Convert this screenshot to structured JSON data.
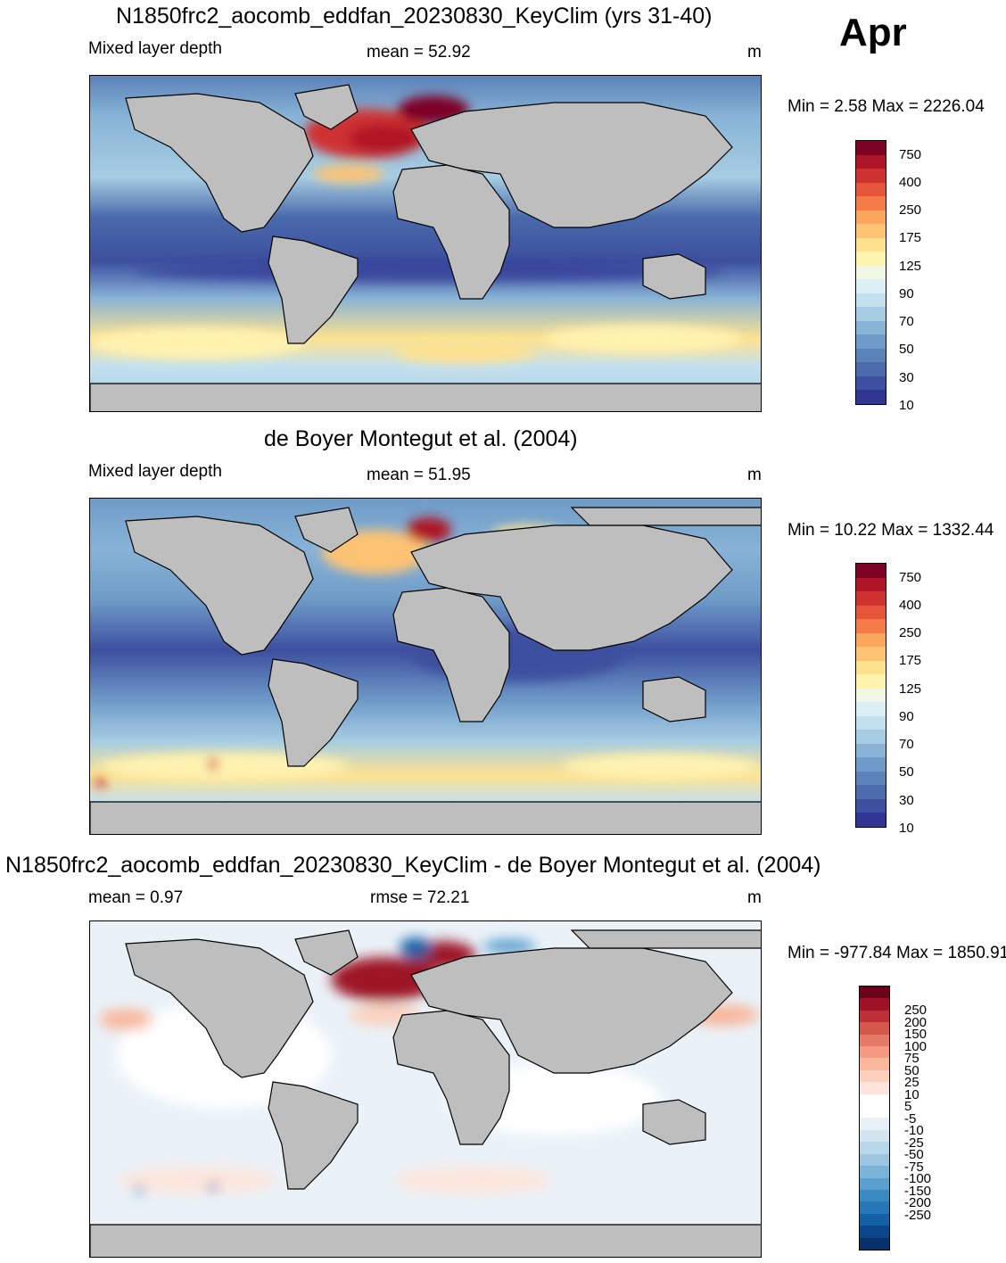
{
  "month": "Apr",
  "units": "m",
  "colors": {
    "land": "#bebebe",
    "coast": "#000000"
  },
  "panels": [
    {
      "id": "model",
      "title": "N1850frc2_aocomb_eddfan_20230830_KeyClim (yrs 31-40)",
      "variable": "Mixed layer depth",
      "stat": "mean =  52.92",
      "stat2": "",
      "minmax": "Min =   2.58 Max = 2226.04",
      "colorbar": {
        "colors": [
          "#313695",
          "#3d4f9f",
          "#4a6aab",
          "#5b82b9",
          "#6f9bc8",
          "#88b3d6",
          "#a6cde3",
          "#c3e0ee",
          "#ddeff6",
          "#f0f8e4",
          "#fff3b0",
          "#fee290",
          "#fdc373",
          "#fca55d",
          "#f57c48",
          "#e4553a",
          "#cf3230",
          "#af1527",
          "#7d0025"
        ],
        "labels": [
          "750",
          "400",
          "250",
          "175",
          "125",
          "90",
          "70",
          "50",
          "30",
          "10"
        ]
      }
    },
    {
      "id": "obs",
      "title": "de Boyer Montegut et al. (2004)",
      "variable": "Mixed layer depth",
      "stat": "mean =  51.95",
      "stat2": "",
      "minmax": "Min =  10.22 Max = 1332.44",
      "colorbar": {
        "colors": [
          "#313695",
          "#3d4f9f",
          "#4a6aab",
          "#5b82b9",
          "#6f9bc8",
          "#88b3d6",
          "#a6cde3",
          "#c3e0ee",
          "#ddeff6",
          "#f0f8e4",
          "#fff3b0",
          "#fee290",
          "#fdc373",
          "#fca55d",
          "#f57c48",
          "#e4553a",
          "#cf3230",
          "#af1527",
          "#7d0025"
        ],
        "labels": [
          "750",
          "400",
          "250",
          "175",
          "125",
          "90",
          "70",
          "50",
          "30",
          "10"
        ]
      }
    },
    {
      "id": "diff",
      "title": "N1850frc2_aocomb_eddfan_20230830_KeyClim - de Boyer Montegut et al. (2004)",
      "variable": "",
      "stat": "mean =   0.97",
      "stat2": "rmse =  72.21",
      "minmax": "Min = -977.84 Max = 1850.91",
      "colorbar": {
        "colors": [
          "#08306b",
          "#0b468a",
          "#1460a6",
          "#2777b8",
          "#3a8ac2",
          "#5a9fcf",
          "#7cb3d9",
          "#9cc6e2",
          "#b9d7ea",
          "#d3e5f1",
          "#e8f1f7",
          "#ffffff",
          "#ffffff",
          "#fde5dc",
          "#fcd0bd",
          "#f9b79e",
          "#f39a80",
          "#e67a64",
          "#d4574b",
          "#bd3038",
          "#9e1227",
          "#6c0019"
        ],
        "labels": [
          "250",
          "200",
          "150",
          "100",
          "75",
          "50",
          "25",
          "10",
          "5",
          "-5",
          "-10",
          "-25",
          "-50",
          "-75",
          "-100",
          "-150",
          "-200",
          "-250"
        ]
      }
    }
  ]
}
